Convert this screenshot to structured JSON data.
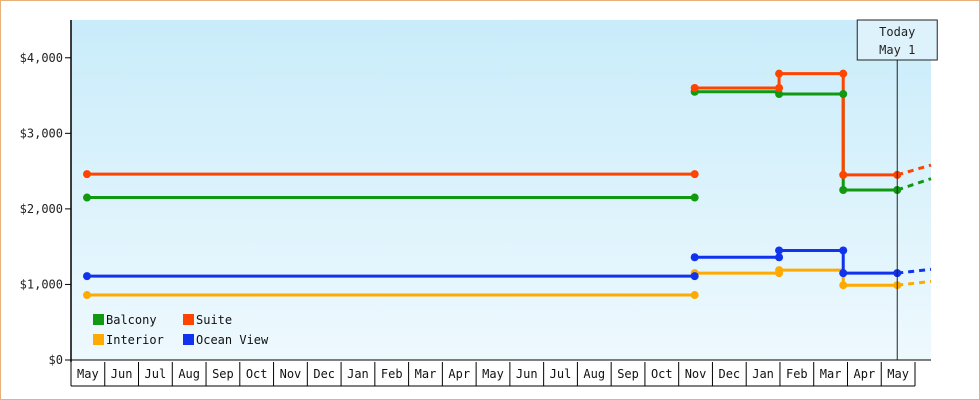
{
  "chart_data": {
    "type": "line",
    "step": true,
    "ylim": [
      0,
      4500
    ],
    "y_ticks": [
      0,
      1000,
      2000,
      3000,
      4000
    ],
    "y_tick_labels": [
      "$0",
      "$1,000",
      "$2,000",
      "$3,000",
      "$4,000"
    ],
    "months": [
      "May",
      "Jun",
      "Jul",
      "Aug",
      "Sep",
      "Oct",
      "Nov",
      "Dec",
      "Jan",
      "Feb",
      "Mar",
      "Apr",
      "May",
      "Jun",
      "Jul",
      "Aug",
      "Sep",
      "Oct",
      "Nov",
      "Dec",
      "Jan",
      "Feb",
      "Mar",
      "Apr",
      "May"
    ],
    "today_marker": {
      "line1": "Today",
      "line2": "May 1",
      "x_index": 24
    },
    "grid": false,
    "legend_position": "bottom-left",
    "series": [
      {
        "name": "Balcony",
        "color": "#119911",
        "segments": [
          [
            [
              0,
              2150
            ],
            [
              18,
              2150
            ]
          ],
          [
            [
              18,
              3550
            ],
            [
              20.5,
              3550
            ],
            [
              20.5,
              3520
            ],
            [
              22.4,
              3520
            ],
            [
              22.4,
              2250
            ],
            [
              24,
              2250
            ]
          ]
        ],
        "markers": [
          [
            0,
            2150
          ],
          [
            18,
            2150
          ],
          [
            18,
            3550
          ],
          [
            20.5,
            3520
          ],
          [
            22.4,
            3520
          ],
          [
            22.4,
            2250
          ],
          [
            24,
            2250
          ]
        ],
        "projection": [
          [
            24,
            2250
          ],
          [
            25.6,
            2400
          ]
        ]
      },
      {
        "name": "Suite",
        "color": "#ff4400",
        "segments": [
          [
            [
              0,
              2460
            ],
            [
              18,
              2460
            ]
          ],
          [
            [
              18,
              3600
            ],
            [
              20.5,
              3600
            ],
            [
              20.5,
              3790
            ],
            [
              22.4,
              3790
            ],
            [
              22.4,
              2450
            ],
            [
              24,
              2450
            ]
          ]
        ],
        "markers": [
          [
            0,
            2460
          ],
          [
            18,
            2460
          ],
          [
            18,
            3600
          ],
          [
            20.5,
            3600
          ],
          [
            20.5,
            3790
          ],
          [
            22.4,
            3790
          ],
          [
            22.4,
            2450
          ],
          [
            24,
            2450
          ]
        ],
        "projection": [
          [
            24,
            2450
          ],
          [
            25.6,
            2580
          ]
        ]
      },
      {
        "name": "Interior",
        "color": "#ffaa00",
        "segments": [
          [
            [
              0,
              860
            ],
            [
              18,
              860
            ]
          ],
          [
            [
              18,
              1150
            ],
            [
              20.5,
              1150
            ],
            [
              20.5,
              1190
            ],
            [
              22.4,
              1190
            ],
            [
              22.4,
              990
            ],
            [
              24,
              990
            ]
          ]
        ],
        "markers": [
          [
            0,
            860
          ],
          [
            18,
            860
          ],
          [
            18,
            1150
          ],
          [
            20.5,
            1150
          ],
          [
            20.5,
            1190
          ],
          [
            22.4,
            990
          ],
          [
            24,
            990
          ]
        ],
        "projection": [
          [
            24,
            990
          ],
          [
            25.6,
            1040
          ]
        ]
      },
      {
        "name": "Ocean View",
        "color": "#1133ee",
        "segments": [
          [
            [
              0,
              1110
            ],
            [
              18,
              1110
            ]
          ],
          [
            [
              18,
              1360
            ],
            [
              20.5,
              1360
            ],
            [
              20.5,
              1450
            ],
            [
              22.4,
              1450
            ],
            [
              22.4,
              1150
            ],
            [
              24,
              1150
            ]
          ]
        ],
        "markers": [
          [
            0,
            1110
          ],
          [
            18,
            1110
          ],
          [
            18,
            1360
          ],
          [
            20.5,
            1360
          ],
          [
            20.5,
            1450
          ],
          [
            22.4,
            1450
          ],
          [
            22.4,
            1150
          ],
          [
            24,
            1150
          ]
        ],
        "projection": [
          [
            24,
            1150
          ],
          [
            25.6,
            1200
          ]
        ]
      }
    ]
  }
}
